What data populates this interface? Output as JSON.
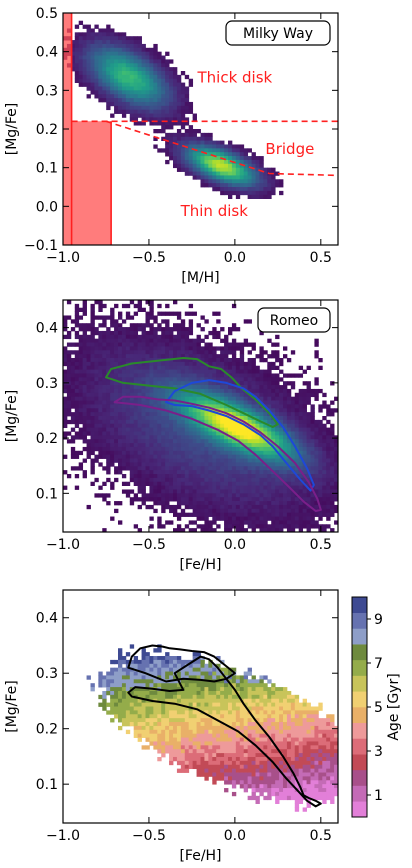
{
  "chart_data": [
    {
      "type": "heatmap",
      "title": "",
      "label_box": "Milky Way",
      "xlabel": "[M/H]",
      "ylabel": "[Mg/Fe]",
      "xlim": [
        -1.0,
        0.6
      ],
      "ylim": [
        -0.1,
        0.5
      ],
      "xticks": [
        -1.0,
        -0.5,
        0.0,
        0.5
      ],
      "xtick_labels": [
        "−1.0",
        "−0.5",
        "0.0",
        "0.5"
      ],
      "yticks": [
        -0.1,
        0.0,
        0.1,
        0.2,
        0.3,
        0.4,
        0.5
      ],
      "ytick_labels": [
        "−0.1",
        "0.0",
        "0.1",
        "0.2",
        "0.3",
        "0.4",
        "0.5"
      ],
      "colormap": "viridis",
      "annotations": [
        {
          "text": "Thick disk",
          "x": 0.0,
          "y": 0.32
        },
        {
          "text": "Bridge",
          "x": 0.32,
          "y": 0.135
        },
        {
          "text": "Thin disk",
          "x": -0.12,
          "y": -0.025
        }
      ],
      "annotation_color": "#ff2020",
      "dashed_boundaries": [
        {
          "x": [
            -0.95,
            0.6
          ],
          "y": [
            0.22,
            0.22
          ]
        },
        {
          "x": [
            -0.75,
            0.2,
            0.6
          ],
          "y": [
            0.22,
            0.085,
            0.08
          ]
        }
      ],
      "shaded_regions": [
        {
          "x": [
            -1.0,
            -0.95
          ],
          "y": [
            -0.1,
            0.5
          ]
        },
        {
          "x": [
            -0.95,
            -0.72
          ],
          "y": [
            -0.1,
            0.22
          ]
        }
      ],
      "density_blobs": [
        {
          "name": "thick",
          "cx": -0.62,
          "cy": 0.335,
          "sx": 0.16,
          "sy": 0.055,
          "rho": -0.55,
          "amp": 0.75
        },
        {
          "name": "thin",
          "cx": -0.08,
          "cy": 0.105,
          "sx": 0.14,
          "sy": 0.035,
          "rho": -0.6,
          "amp": 1.0
        }
      ]
    },
    {
      "type": "heatmap",
      "title": "",
      "label_box": "Romeo",
      "xlabel": "[Fe/H]",
      "ylabel": "[Mg/Fe]",
      "xlim": [
        -1.0,
        0.6
      ],
      "ylim": [
        0.03,
        0.45
      ],
      "xticks": [
        -1.0,
        -0.5,
        0.0,
        0.5
      ],
      "xtick_labels": [
        "−1.0",
        "−0.5",
        "0.0",
        "0.5"
      ],
      "yticks": [
        0.1,
        0.2,
        0.3,
        0.4
      ],
      "ytick_labels": [
        "0.1",
        "0.2",
        "0.3",
        "0.4"
      ],
      "colormap": "viridis",
      "contours": [
        {
          "color": "#2a8a2a",
          "x": [
            -0.75,
            -0.72,
            -0.6,
            -0.45,
            -0.3,
            -0.22,
            -0.15,
            -0.08,
            -0.02,
            0.04,
            0.12,
            0.2,
            0.25,
            0.22,
            0.15,
            0.05,
            -0.05,
            -0.2,
            -0.35,
            -0.5,
            -0.65,
            -0.75
          ],
          "y": [
            0.31,
            0.325,
            0.335,
            0.34,
            0.345,
            0.343,
            0.33,
            0.325,
            0.31,
            0.29,
            0.27,
            0.245,
            0.225,
            0.22,
            0.23,
            0.245,
            0.26,
            0.28,
            0.29,
            0.295,
            0.3,
            0.31
          ]
        },
        {
          "color": "#1e48d8",
          "x": [
            -0.4,
            -0.35,
            -0.25,
            -0.15,
            -0.05,
            0.05,
            0.12,
            0.2,
            0.28,
            0.35,
            0.42,
            0.46,
            0.44,
            0.38,
            0.3,
            0.22,
            0.15,
            0.05,
            -0.05,
            -0.15,
            -0.25,
            -0.35,
            -0.4
          ],
          "y": [
            0.265,
            0.285,
            0.3,
            0.305,
            0.3,
            0.29,
            0.275,
            0.25,
            0.22,
            0.185,
            0.145,
            0.115,
            0.105,
            0.125,
            0.155,
            0.185,
            0.205,
            0.225,
            0.24,
            0.25,
            0.258,
            0.26,
            0.265
          ]
        },
        {
          "color": "#7a1f8a",
          "x": [
            -0.7,
            -0.65,
            -0.55,
            -0.45,
            -0.35,
            -0.25,
            -0.15,
            -0.05,
            0.05,
            0.15,
            0.25,
            0.35,
            0.43,
            0.48,
            0.5,
            0.47,
            0.4,
            0.32,
            0.22,
            0.12,
            0.02,
            -0.1,
            -0.25,
            -0.4,
            -0.55,
            -0.7
          ],
          "y": [
            0.265,
            0.275,
            0.275,
            0.27,
            0.268,
            0.262,
            0.255,
            0.245,
            0.23,
            0.21,
            0.185,
            0.155,
            0.12,
            0.09,
            0.07,
            0.068,
            0.085,
            0.11,
            0.14,
            0.17,
            0.195,
            0.215,
            0.235,
            0.25,
            0.26,
            0.265
          ]
        }
      ],
      "density_blobs": [
        {
          "name": "halo",
          "cx": -0.2,
          "cy": 0.22,
          "sx": 0.45,
          "sy": 0.1,
          "rho": -0.5,
          "amp": 0.25
        },
        {
          "name": "ridge",
          "cx": 0.02,
          "cy": 0.22,
          "sx": 0.22,
          "sy": 0.04,
          "rho": -0.75,
          "amp": 1.0
        }
      ]
    },
    {
      "type": "heatmap",
      "title": "",
      "xlabel": "[Fe/H]",
      "ylabel": "[Mg/Fe]",
      "xlim": [
        -1.0,
        0.6
      ],
      "ylim": [
        0.03,
        0.45
      ],
      "xticks": [
        -1.0,
        -0.5,
        0.0,
        0.5
      ],
      "xtick_labels": [
        "−1.0",
        "−0.5",
        "0.0",
        "0.5"
      ],
      "yticks": [
        0.1,
        0.2,
        0.3,
        0.4
      ],
      "ytick_labels": [
        "0.1",
        "0.2",
        "0.3",
        "0.4"
      ],
      "colorbar": {
        "label": "Age [Gyr]",
        "range": [
          0,
          10
        ],
        "ticks": [
          1,
          3,
          5,
          7,
          9
        ],
        "tick_labels": [
          "1",
          "3",
          "5",
          "7",
          "9"
        ],
        "colors": [
          "#e27fd8",
          "#c46bb6",
          "#a8508a",
          "#c24a56",
          "#dc6c78",
          "#ee9a9a",
          "#e9b068",
          "#f1d072",
          "#c8c45a",
          "#94ac4a",
          "#6e8a3e",
          "#8e9ec8",
          "#6672b0",
          "#3e4a92"
        ]
      },
      "contours": [
        {
          "color": "#000000",
          "x": [
            -0.62,
            -0.58,
            -0.48,
            -0.38,
            -0.3,
            -0.35,
            -0.25,
            -0.2,
            -0.15,
            -0.1,
            -0.05,
            0.0,
            0.05,
            0.12,
            0.2,
            0.28,
            0.34,
            0.38,
            0.4,
            0.43,
            0.47,
            0.5,
            0.47,
            0.42,
            0.36,
            0.3,
            0.22,
            0.12,
            0.02,
            -0.1,
            -0.22,
            -0.35,
            -0.48,
            -0.6,
            -0.62
          ],
          "y": [
            0.265,
            0.275,
            0.272,
            0.268,
            0.27,
            0.3,
            0.32,
            0.33,
            0.325,
            0.31,
            0.29,
            0.27,
            0.245,
            0.215,
            0.185,
            0.15,
            0.12,
            0.095,
            0.08,
            0.075,
            0.07,
            0.065,
            0.06,
            0.07,
            0.09,
            0.11,
            0.14,
            0.17,
            0.195,
            0.215,
            0.235,
            0.245,
            0.25,
            0.258,
            0.265
          ]
        },
        {
          "color": "#000000",
          "x": [
            -0.62,
            -0.6,
            -0.55,
            -0.48,
            -0.42,
            -0.38,
            -0.32,
            -0.25,
            -0.18,
            -0.12,
            -0.06,
            0.0,
            -0.05,
            -0.12,
            -0.2,
            -0.3,
            -0.4,
            -0.52,
            -0.62
          ],
          "y": [
            0.31,
            0.33,
            0.345,
            0.35,
            0.348,
            0.345,
            0.343,
            0.34,
            0.338,
            0.33,
            0.315,
            0.3,
            0.29,
            0.285,
            0.288,
            0.29,
            0.285,
            0.3,
            0.31
          ]
        }
      ],
      "density_blobs": [
        {
          "name": "ridge",
          "cx": 0.0,
          "cy": 0.2,
          "sx": 0.35,
          "sy": 0.06,
          "rho": -0.6,
          "amp": 1.0
        }
      ]
    }
  ]
}
